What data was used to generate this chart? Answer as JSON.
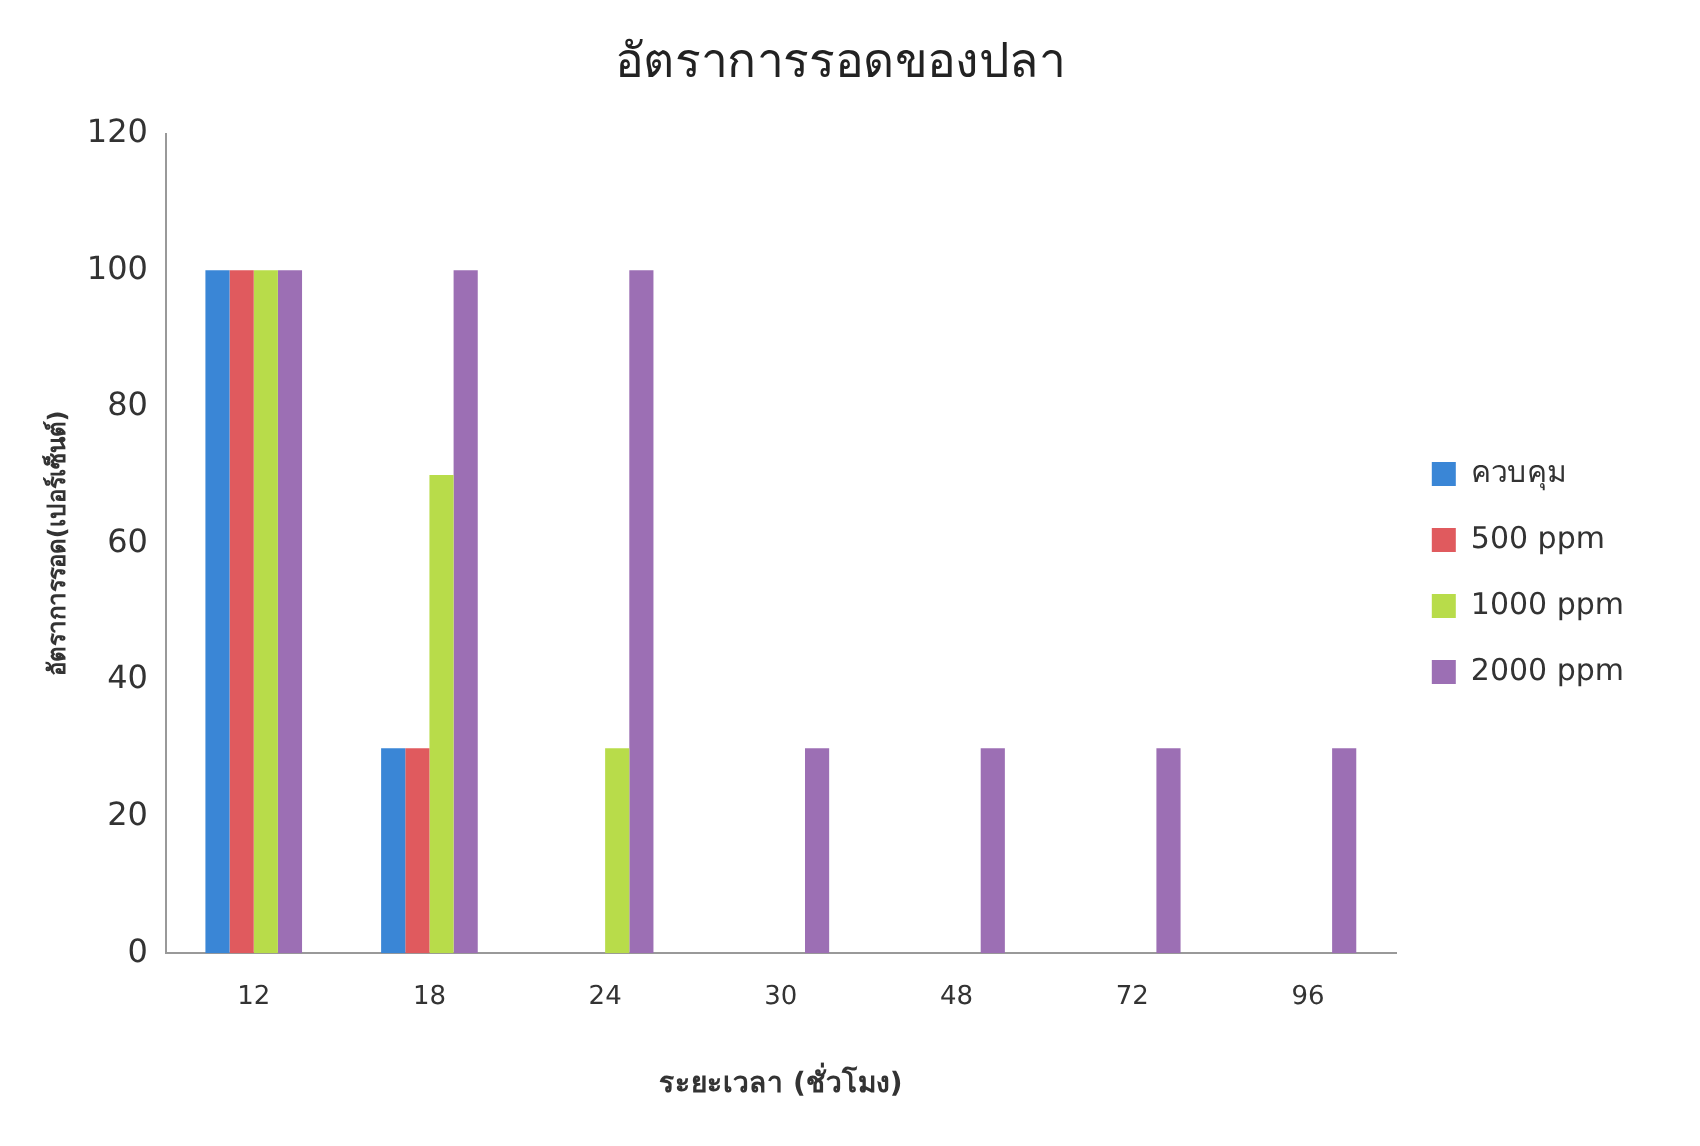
{
  "chart_data": {
    "type": "bar",
    "title": "อัตราการรอดของปลา",
    "xlabel": "ระยะเวลา (ชั่วโมง)",
    "ylabel": "อัตราการรอด(เปอร์เซ็นต์)",
    "categories": [
      "12",
      "18",
      "24",
      "30",
      "48",
      "72",
      "96"
    ],
    "series": [
      {
        "name": "ควบคุม",
        "color": "#3a86d6",
        "values": [
          100,
          30,
          0,
          0,
          0,
          0,
          0
        ]
      },
      {
        "name": "500 ppm",
        "color": "#e05a5e",
        "values": [
          100,
          30,
          0,
          0,
          0,
          0,
          0
        ]
      },
      {
        "name": "1000 ppm",
        "color": "#b8dc4a",
        "values": [
          100,
          70,
          30,
          0,
          0,
          0,
          0
        ]
      },
      {
        "name": "2000 ppm",
        "color": "#9c6fb4",
        "values": [
          100,
          100,
          100,
          30,
          30,
          30,
          30
        ]
      }
    ],
    "ylim": [
      0,
      120
    ],
    "yticks": [
      0,
      20,
      40,
      60,
      80,
      100,
      120
    ],
    "grid": false,
    "legend": "right"
  }
}
